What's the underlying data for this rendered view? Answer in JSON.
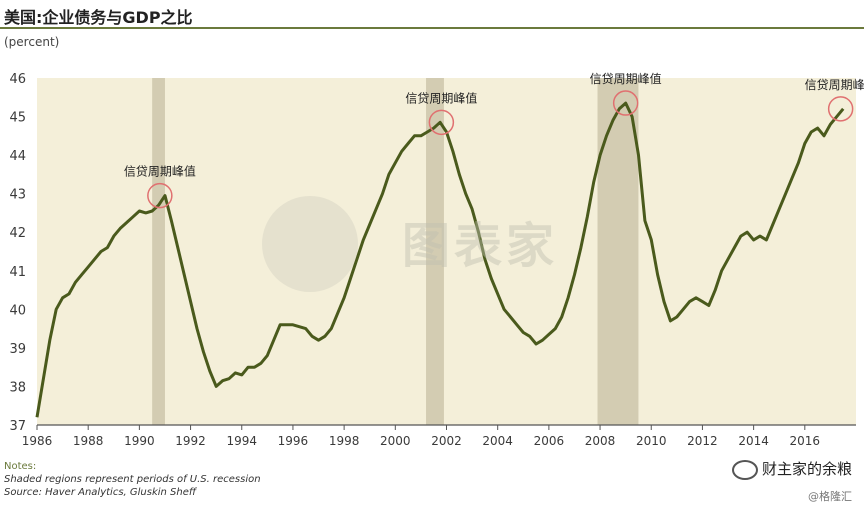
{
  "title": "美国:企业债务与GDP之比",
  "unit_label": "(percent)",
  "notes": {
    "heading": "Notes:",
    "line1": "Shaded regions represent periods of U.S. recession",
    "line2": "Source: Haver Analytics, Gluskin Sheff"
  },
  "watermark": "图表家",
  "brand": {
    "name": "财主家的余粮",
    "sub": "@格隆汇",
    "icon": "wechat-icon"
  },
  "colors": {
    "plot_bg": "#f4efd9",
    "line": "#4a5a1c",
    "recession": "#d3ccb2",
    "circle": "#e07070",
    "axis_text": "#3a3a3a"
  },
  "chart_data": {
    "type": "line",
    "title": "美国:企业债务与GDP之比",
    "ylabel": "(percent)",
    "xlim": [
      1986,
      2018
    ],
    "ylim": [
      37,
      46
    ],
    "y_ticks": [
      37,
      38,
      39,
      40,
      41,
      42,
      43,
      44,
      45,
      46
    ],
    "x_ticks": [
      1986,
      1988,
      1990,
      1992,
      1994,
      1996,
      1998,
      2000,
      2002,
      2004,
      2006,
      2008,
      2010,
      2012,
      2014,
      2016
    ],
    "grid": false,
    "recessions": [
      [
        1990.5,
        1991.0
      ],
      [
        2001.2,
        2001.9
      ],
      [
        2007.9,
        2009.5
      ]
    ],
    "annotations": [
      {
        "text": "信贷周期峰值",
        "x": 1990.8,
        "y": 42.95
      },
      {
        "text": "信贷周期峰值",
        "x": 2001.8,
        "y": 44.85
      },
      {
        "text": "信贷周期峰值",
        "x": 2009.0,
        "y": 45.35
      },
      {
        "text": "信贷周期峰值",
        "x": 2017.4,
        "y": 45.2
      }
    ],
    "series": [
      {
        "x": [
          1986.0,
          1986.25,
          1986.5,
          1986.75,
          1987.0,
          1987.25,
          1987.5,
          1987.75,
          1988.0,
          1988.25,
          1988.5,
          1988.75,
          1989.0,
          1989.25,
          1989.5,
          1989.75,
          1990.0,
          1990.25,
          1990.5,
          1990.75,
          1991.0,
          1991.25,
          1991.5,
          1991.75,
          1992.0,
          1992.25,
          1992.5,
          1992.75,
          1993.0,
          1993.25,
          1993.5,
          1993.75,
          1994.0,
          1994.25,
          1994.5,
          1994.75,
          1995.0,
          1995.25,
          1995.5,
          1995.75,
          1996.0,
          1996.25,
          1996.5,
          1996.75,
          1997.0,
          1997.25,
          1997.5,
          1997.75,
          1998.0,
          1998.25,
          1998.5,
          1998.75,
          1999.0,
          1999.25,
          1999.5,
          1999.75,
          2000.0,
          2000.25,
          2000.5,
          2000.75,
          2001.0,
          2001.25,
          2001.5,
          2001.75,
          2002.0,
          2002.25,
          2002.5,
          2002.75,
          2003.0,
          2003.25,
          2003.5,
          2003.75,
          2004.0,
          2004.25,
          2004.5,
          2004.75,
          2005.0,
          2005.25,
          2005.5,
          2005.75,
          2006.0,
          2006.25,
          2006.5,
          2006.75,
          2007.0,
          2007.25,
          2007.5,
          2007.75,
          2008.0,
          2008.25,
          2008.5,
          2008.75,
          2009.0,
          2009.25,
          2009.5,
          2009.75,
          2010.0,
          2010.25,
          2010.5,
          2010.75,
          2011.0,
          2011.25,
          2011.5,
          2011.75,
          2012.0,
          2012.25,
          2012.5,
          2012.75,
          2013.0,
          2013.25,
          2013.5,
          2013.75,
          2014.0,
          2014.25,
          2014.5,
          2014.75,
          2015.0,
          2015.25,
          2015.5,
          2015.75,
          2016.0,
          2016.25,
          2016.5,
          2016.75,
          2017.0,
          2017.25,
          2017.5
        ],
        "values": [
          37.2,
          38.2,
          39.2,
          40.0,
          40.3,
          40.4,
          40.7,
          40.9,
          41.1,
          41.3,
          41.5,
          41.6,
          41.9,
          42.1,
          42.25,
          42.4,
          42.55,
          42.5,
          42.55,
          42.7,
          42.95,
          42.3,
          41.6,
          40.9,
          40.2,
          39.5,
          38.9,
          38.4,
          38.0,
          38.15,
          38.2,
          38.35,
          38.3,
          38.5,
          38.5,
          38.6,
          38.8,
          39.2,
          39.6,
          39.6,
          39.6,
          39.55,
          39.5,
          39.3,
          39.2,
          39.3,
          39.5,
          39.9,
          40.3,
          40.8,
          41.3,
          41.8,
          42.2,
          42.6,
          43.0,
          43.5,
          43.8,
          44.1,
          44.3,
          44.5,
          44.5,
          44.6,
          44.7,
          44.85,
          44.6,
          44.1,
          43.5,
          43.0,
          42.6,
          42.0,
          41.3,
          40.8,
          40.4,
          40.0,
          39.8,
          39.6,
          39.4,
          39.3,
          39.1,
          39.2,
          39.35,
          39.5,
          39.8,
          40.3,
          40.9,
          41.6,
          42.4,
          43.3,
          44.0,
          44.5,
          44.9,
          45.2,
          45.35,
          45.0,
          44.0,
          42.3,
          41.8,
          40.9,
          40.2,
          39.7,
          39.8,
          40.0,
          40.2,
          40.3,
          40.2,
          40.1,
          40.5,
          41.0,
          41.3,
          41.6,
          41.9,
          42.0,
          41.8,
          41.9,
          41.8,
          42.2,
          42.6,
          43.0,
          43.4,
          43.8,
          44.3,
          44.6,
          44.7,
          44.5,
          44.8,
          45.0,
          45.2
        ]
      }
    ]
  }
}
